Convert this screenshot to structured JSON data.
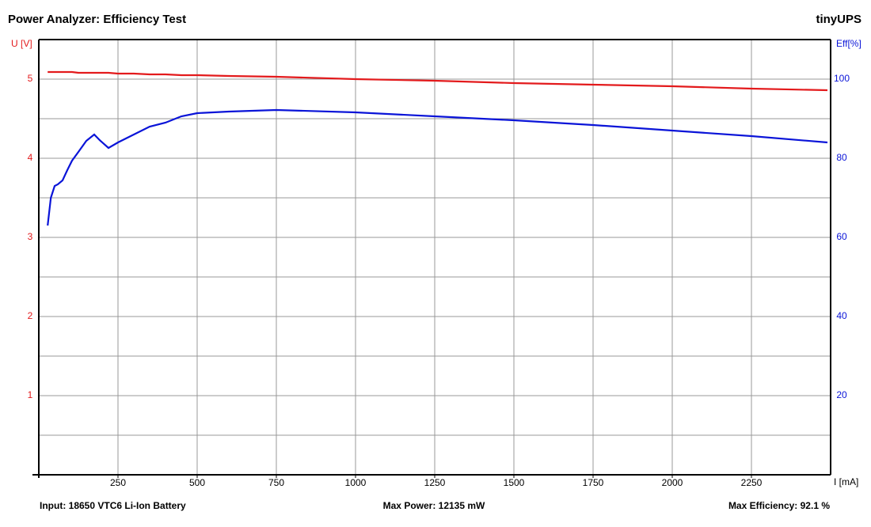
{
  "chart_data": {
    "type": "line",
    "title": "Power Analyzer: Efficiency Test",
    "brand": "tinyUPS",
    "ylabel": "U [V]",
    "y2label": "Eff[%]",
    "xlabel": "I [mA]",
    "footer": [
      "Input: 18650 VTC6 Li-Ion Battery",
      "Max Power: 12135 mW",
      "Max Efficiency: 92.1 %"
    ],
    "x": [
      28,
      38,
      50,
      60,
      75,
      90,
      105,
      125,
      150,
      175,
      192,
      220,
      250,
      300,
      350,
      400,
      450,
      500,
      600,
      750,
      1000,
      1250,
      1500,
      1750,
      2000,
      2250,
      2490
    ],
    "series": [
      {
        "color": "#e31a1c",
        "values": [
          5.09,
          5.09,
          5.09,
          5.09,
          5.09,
          5.09,
          5.09,
          5.08,
          5.08,
          5.08,
          5.08,
          5.08,
          5.07,
          5.07,
          5.06,
          5.06,
          5.05,
          5.05,
          5.04,
          5.03,
          5.0,
          4.98,
          4.95,
          4.93,
          4.91,
          4.88,
          4.86
        ]
      },
      {
        "color": "#0a14d8",
        "axis": "y2",
        "values": [
          63,
          70,
          73,
          73.4,
          74.4,
          77,
          79.4,
          81.6,
          84.4,
          86,
          84.6,
          82.6,
          84,
          86,
          88,
          89,
          90.6,
          91.4,
          91.8,
          92.2,
          91.6,
          90.6,
          89.6,
          88.4,
          87,
          85.6,
          84
        ]
      }
    ],
    "xlim": [
      0,
      2500
    ],
    "xticks": [
      250,
      500,
      750,
      1000,
      1250,
      1500,
      1750,
      2000,
      2250
    ],
    "ylim": [
      0,
      5.5
    ],
    "yticks": [
      1,
      2,
      3,
      4,
      5
    ],
    "y_minor_ticks": [
      0.5,
      1.5,
      2.5,
      3.5,
      4.5
    ],
    "y2lim": [
      0,
      110
    ],
    "y2ticks": [
      20,
      40,
      60,
      80,
      100
    ],
    "grid": true
  }
}
